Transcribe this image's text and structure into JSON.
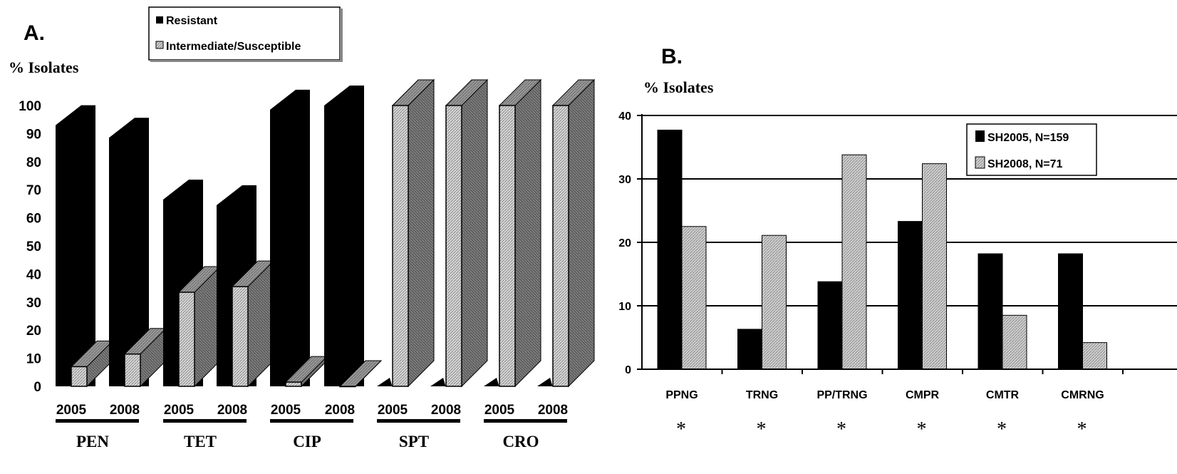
{
  "colors": {
    "resistant": "#000000",
    "susceptible_front": "#cfcfcf",
    "susceptible_side": "#6a6a6a",
    "sh2005": "#000000",
    "sh2008": "#bdbdbd"
  },
  "chart_data": [
    {
      "panel": "A.",
      "type": "bar",
      "ylabel": "% Isolates",
      "ylim": [
        0,
        100
      ],
      "yticks": [
        0,
        10,
        20,
        30,
        40,
        50,
        60,
        70,
        80,
        90,
        100
      ],
      "legend": [
        "Resistant",
        "Intermediate/Susceptible"
      ],
      "legend_placement": "top",
      "groups": [
        {
          "label": "PEN",
          "years": [
            {
              "year": "2005",
              "resistant": 93,
              "intermediate_susceptible": 7
            },
            {
              "year": "2008",
              "resistant": 88.5,
              "intermediate_susceptible": 11.5
            }
          ]
        },
        {
          "label": "TET",
          "years": [
            {
              "year": "2005",
              "resistant": 66.5,
              "intermediate_susceptible": 33.5
            },
            {
              "year": "2008",
              "resistant": 64.5,
              "intermediate_susceptible": 35.5
            }
          ]
        },
        {
          "label": "CIP",
          "years": [
            {
              "year": "2005",
              "resistant": 98.5,
              "intermediate_susceptible": 1.5
            },
            {
              "year": "2008",
              "resistant": 100,
              "intermediate_susceptible": 0
            }
          ]
        },
        {
          "label": "SPT",
          "years": [
            {
              "year": "2005",
              "resistant": 0,
              "intermediate_susceptible": 100
            },
            {
              "year": "2008",
              "resistant": 0,
              "intermediate_susceptible": 100
            }
          ]
        },
        {
          "label": "CRO",
          "years": [
            {
              "year": "2005",
              "resistant": 0,
              "intermediate_susceptible": 100
            },
            {
              "year": "2008",
              "resistant": 0,
              "intermediate_susceptible": 100
            }
          ]
        }
      ]
    },
    {
      "panel": "B.",
      "type": "bar",
      "ylabel": "% Isolates",
      "ylim": [
        0,
        40
      ],
      "yticks": [
        0,
        10,
        20,
        30,
        40
      ],
      "grid": true,
      "legend_placement": "top-right",
      "categories": [
        "PPNG",
        "TRNG",
        "PP/TRNG",
        "CMPR",
        "CMTR",
        "CMRNG"
      ],
      "series": [
        {
          "name": "SH2005, N=159",
          "values": [
            37.7,
            6.3,
            13.8,
            23.3,
            18.2,
            18.2
          ]
        },
        {
          "name": "SH2008, N=71",
          "values": [
            22.5,
            21.1,
            33.8,
            32.4,
            8.5,
            4.2
          ]
        }
      ],
      "annotations": [
        "*",
        "*",
        "*",
        "*",
        "*",
        "*"
      ]
    }
  ]
}
